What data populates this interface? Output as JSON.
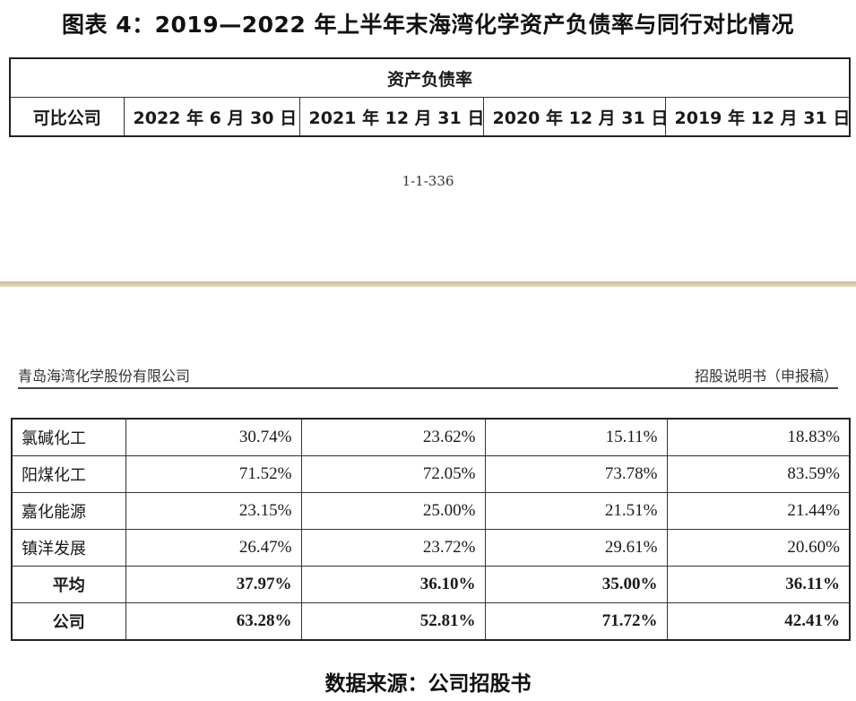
{
  "title": "图表 4：2019—2022 年上半年末海湾化学资产负债率与同行对比情况",
  "header_table": {
    "span_label": "资产负债率",
    "columns": [
      "可比公司",
      "2022 年 6 月 30 日",
      "2021 年 12 月 31 日",
      "2020 年 12 月 31 日",
      "2019 年 12 月 31 日"
    ]
  },
  "page_number": "1-1-336",
  "running_header": {
    "left": "青岛海湾化学股份有限公司",
    "right": "招股说明书（申报稿）"
  },
  "rows": [
    {
      "name": "氯碱化工",
      "values": [
        "30.74%",
        "23.62%",
        "15.11%",
        "18.83%"
      ]
    },
    {
      "name": "阳煤化工",
      "values": [
        "71.52%",
        "72.05%",
        "73.78%",
        "83.59%"
      ]
    },
    {
      "name": "嘉化能源",
      "values": [
        "23.15%",
        "25.00%",
        "21.51%",
        "21.44%"
      ]
    },
    {
      "name": "镇洋发展",
      "values": [
        "26.47%",
        "23.72%",
        "29.61%",
        "20.60%"
      ]
    },
    {
      "name": "平均",
      "values": [
        "37.97%",
        "36.10%",
        "35.00%",
        "36.11%"
      ]
    },
    {
      "name": "公司",
      "values": [
        "63.28%",
        "52.81%",
        "71.72%",
        "42.41%"
      ]
    }
  ],
  "source": "数据来源：公司招股书"
}
